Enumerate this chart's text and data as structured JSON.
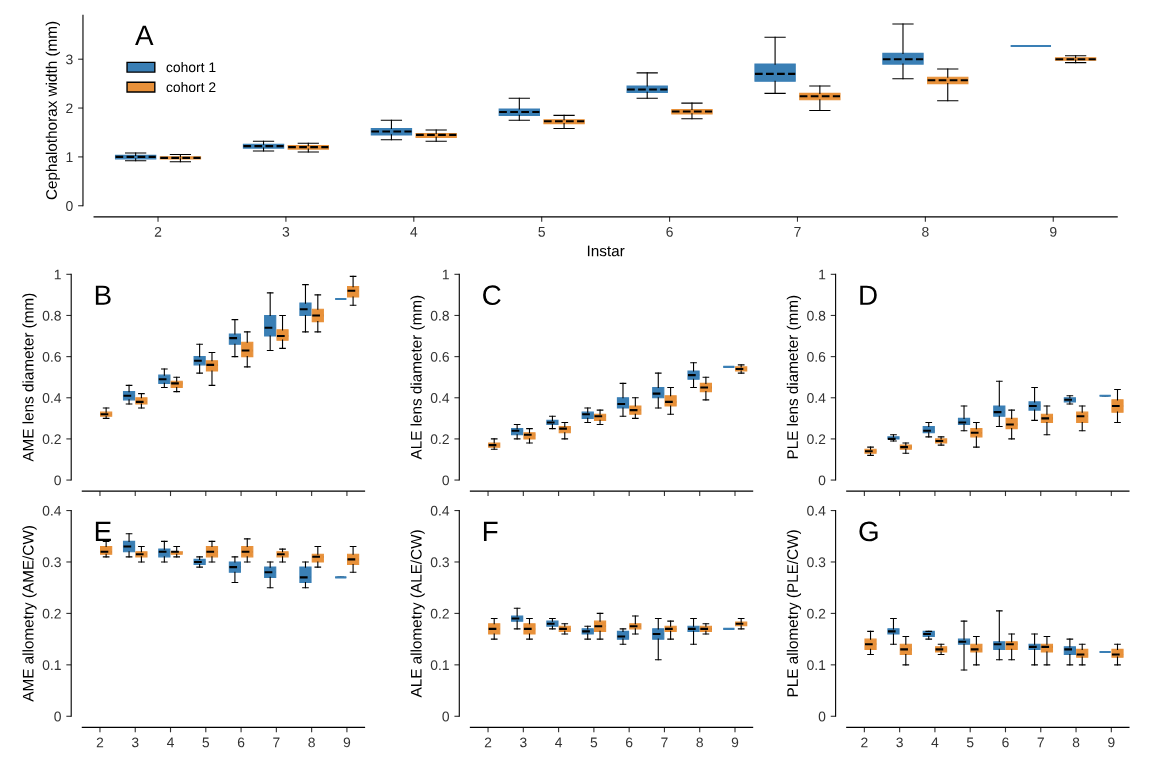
{
  "chart_data": [
    {
      "type": "box",
      "annotations": [
        "A"
      ],
      "xlabel": "Instar",
      "ylabel": "Cephalothorax width (mm)",
      "categories": [
        "2",
        "3",
        "4",
        "5",
        "6",
        "7",
        "8",
        "9"
      ],
      "ylim": [
        0,
        3.9
      ],
      "yticks": [
        0,
        1,
        2,
        3
      ],
      "legend": "top left",
      "series": [
        {
          "name": "cohort 1",
          "color": "#3a7fb5",
          "boxes": [
            {
              "low": 0.92,
              "q1": 0.96,
              "median": 1.0,
              "q3": 1.03,
              "high": 1.08
            },
            {
              "low": 1.12,
              "q1": 1.18,
              "median": 1.22,
              "q3": 1.26,
              "high": 1.32
            },
            {
              "low": 1.35,
              "q1": 1.45,
              "median": 1.52,
              "q3": 1.58,
              "high": 1.75
            },
            {
              "low": 1.75,
              "q1": 1.85,
              "median": 1.92,
              "q3": 1.98,
              "high": 2.2
            },
            {
              "low": 2.2,
              "q1": 2.32,
              "median": 2.38,
              "q3": 2.45,
              "high": 2.72
            },
            {
              "low": 2.3,
              "q1": 2.55,
              "median": 2.7,
              "q3": 2.9,
              "high": 3.45
            },
            {
              "low": 2.6,
              "q1": 2.9,
              "median": 3.0,
              "q3": 3.12,
              "high": 3.72
            },
            {
              "low": 3.27,
              "q1": 3.27,
              "median": 3.27,
              "q3": 3.27,
              "high": 3.27
            }
          ]
        },
        {
          "name": "cohort 2",
          "color": "#e8913a",
          "boxes": [
            {
              "low": 0.9,
              "q1": 0.96,
              "median": 0.98,
              "q3": 1.0,
              "high": 1.05
            },
            {
              "low": 1.1,
              "q1": 1.16,
              "median": 1.2,
              "q3": 1.23,
              "high": 1.28
            },
            {
              "low": 1.32,
              "q1": 1.4,
              "median": 1.45,
              "q3": 1.48,
              "high": 1.55
            },
            {
              "low": 1.58,
              "q1": 1.68,
              "median": 1.73,
              "q3": 1.76,
              "high": 1.85
            },
            {
              "low": 1.78,
              "q1": 1.88,
              "median": 1.93,
              "q3": 1.97,
              "high": 2.1
            },
            {
              "low": 1.95,
              "q1": 2.17,
              "median": 2.24,
              "q3": 2.3,
              "high": 2.45
            },
            {
              "low": 2.15,
              "q1": 2.5,
              "median": 2.57,
              "q3": 2.63,
              "high": 2.8
            },
            {
              "low": 2.93,
              "q1": 2.98,
              "median": 3.0,
              "q3": 3.03,
              "high": 3.07
            }
          ]
        }
      ]
    },
    {
      "type": "box",
      "annotations": [
        "B"
      ],
      "ylabel": "AME lens diameter (mm)",
      "categories": [
        "2",
        "3",
        "4",
        "5",
        "6",
        "7",
        "8",
        "9"
      ],
      "ylim": [
        0,
        1
      ],
      "yticks": [
        0,
        0.2,
        0.4,
        0.6,
        0.8,
        1
      ],
      "tick_labels": "y",
      "series": [
        {
          "color": "#3a7fb5",
          "boxes": [
            null,
            {
              "low": 0.37,
              "q1": 0.39,
              "median": 0.41,
              "q3": 0.43,
              "high": 0.46
            },
            {
              "low": 0.45,
              "q1": 0.47,
              "median": 0.49,
              "q3": 0.51,
              "high": 0.54
            },
            {
              "low": 0.52,
              "q1": 0.56,
              "median": 0.58,
              "q3": 0.6,
              "high": 0.66
            },
            {
              "low": 0.6,
              "q1": 0.66,
              "median": 0.69,
              "q3": 0.71,
              "high": 0.78
            },
            {
              "low": 0.63,
              "q1": 0.7,
              "median": 0.74,
              "q3": 0.8,
              "high": 0.91
            },
            {
              "low": 0.72,
              "q1": 0.8,
              "median": 0.83,
              "q3": 0.86,
              "high": 0.95
            },
            {
              "low": 0.88,
              "q1": 0.88,
              "median": 0.88,
              "q3": 0.88,
              "high": 0.88
            }
          ]
        },
        {
          "color": "#e8913a",
          "boxes": [
            {
              "low": 0.3,
              "q1": 0.31,
              "median": 0.32,
              "q3": 0.33,
              "high": 0.35
            },
            {
              "low": 0.35,
              "q1": 0.37,
              "median": 0.38,
              "q3": 0.4,
              "high": 0.42
            },
            {
              "low": 0.43,
              "q1": 0.45,
              "median": 0.47,
              "q3": 0.48,
              "high": 0.5
            },
            {
              "low": 0.46,
              "q1": 0.53,
              "median": 0.56,
              "q3": 0.58,
              "high": 0.62
            },
            {
              "low": 0.55,
              "q1": 0.6,
              "median": 0.63,
              "q3": 0.67,
              "high": 0.72
            },
            {
              "low": 0.64,
              "q1": 0.68,
              "median": 0.7,
              "q3": 0.73,
              "high": 0.8
            },
            {
              "low": 0.72,
              "q1": 0.77,
              "median": 0.8,
              "q3": 0.83,
              "high": 0.9
            },
            {
              "low": 0.85,
              "q1": 0.89,
              "median": 0.92,
              "q3": 0.94,
              "high": 0.99
            }
          ]
        }
      ]
    },
    {
      "type": "box",
      "annotations": [
        "C"
      ],
      "ylabel": "ALE lens diameter (mm)",
      "categories": [
        "2",
        "3",
        "4",
        "5",
        "6",
        "7",
        "8",
        "9"
      ],
      "ylim": [
        0,
        1
      ],
      "yticks": [
        0,
        0.2,
        0.4,
        0.6,
        0.8,
        1
      ],
      "tick_labels": "y",
      "series": [
        {
          "color": "#3a7fb5",
          "boxes": [
            null,
            {
              "low": 0.2,
              "q1": 0.22,
              "median": 0.24,
              "q3": 0.25,
              "high": 0.27
            },
            {
              "low": 0.25,
              "q1": 0.27,
              "median": 0.28,
              "q3": 0.29,
              "high": 0.31
            },
            {
              "low": 0.28,
              "q1": 0.3,
              "median": 0.32,
              "q3": 0.33,
              "high": 0.35
            },
            {
              "low": 0.31,
              "q1": 0.35,
              "median": 0.37,
              "q3": 0.4,
              "high": 0.47
            },
            {
              "low": 0.35,
              "q1": 0.4,
              "median": 0.42,
              "q3": 0.45,
              "high": 0.52
            },
            {
              "low": 0.45,
              "q1": 0.49,
              "median": 0.51,
              "q3": 0.53,
              "high": 0.57
            },
            {
              "low": 0.55,
              "q1": 0.55,
              "median": 0.55,
              "q3": 0.55,
              "high": 0.55
            }
          ]
        },
        {
          "color": "#e8913a",
          "boxes": [
            {
              "low": 0.15,
              "q1": 0.16,
              "median": 0.17,
              "q3": 0.18,
              "high": 0.2
            },
            {
              "low": 0.18,
              "q1": 0.2,
              "median": 0.22,
              "q3": 0.23,
              "high": 0.25
            },
            {
              "low": 0.2,
              "q1": 0.23,
              "median": 0.25,
              "q3": 0.26,
              "high": 0.28
            },
            {
              "low": 0.27,
              "q1": 0.29,
              "median": 0.31,
              "q3": 0.32,
              "high": 0.34
            },
            {
              "low": 0.3,
              "q1": 0.32,
              "median": 0.34,
              "q3": 0.36,
              "high": 0.4
            },
            {
              "low": 0.32,
              "q1": 0.36,
              "median": 0.38,
              "q3": 0.41,
              "high": 0.45
            },
            {
              "low": 0.39,
              "q1": 0.43,
              "median": 0.45,
              "q3": 0.47,
              "high": 0.5
            },
            {
              "low": 0.52,
              "q1": 0.53,
              "median": 0.54,
              "q3": 0.55,
              "high": 0.56
            }
          ]
        }
      ]
    },
    {
      "type": "box",
      "annotations": [
        "D"
      ],
      "ylabel": "PLE lens diameter (mm)",
      "categories": [
        "2",
        "3",
        "4",
        "5",
        "6",
        "7",
        "8",
        "9"
      ],
      "ylim": [
        0,
        1
      ],
      "yticks": [
        0,
        0.2,
        0.4,
        0.6,
        0.8,
        1
      ],
      "tick_labels": "y",
      "series": [
        {
          "color": "#3a7fb5",
          "boxes": [
            null,
            {
              "low": 0.19,
              "q1": 0.2,
              "median": 0.2,
              "q3": 0.21,
              "high": 0.22
            },
            {
              "low": 0.21,
              "q1": 0.23,
              "median": 0.24,
              "q3": 0.26,
              "high": 0.28
            },
            {
              "low": 0.24,
              "q1": 0.27,
              "median": 0.28,
              "q3": 0.3,
              "high": 0.36
            },
            {
              "low": 0.26,
              "q1": 0.31,
              "median": 0.33,
              "q3": 0.36,
              "high": 0.48
            },
            {
              "low": 0.29,
              "q1": 0.34,
              "median": 0.36,
              "q3": 0.38,
              "high": 0.45
            },
            {
              "low": 0.37,
              "q1": 0.38,
              "median": 0.39,
              "q3": 0.4,
              "high": 0.41
            },
            {
              "low": 0.41,
              "q1": 0.41,
              "median": 0.41,
              "q3": 0.41,
              "high": 0.41
            }
          ]
        },
        {
          "color": "#e8913a",
          "boxes": [
            {
              "low": 0.12,
              "q1": 0.13,
              "median": 0.14,
              "q3": 0.15,
              "high": 0.16
            },
            {
              "low": 0.13,
              "q1": 0.15,
              "median": 0.16,
              "q3": 0.17,
              "high": 0.18
            },
            {
              "low": 0.17,
              "q1": 0.18,
              "median": 0.19,
              "q3": 0.2,
              "high": 0.21
            },
            {
              "low": 0.16,
              "q1": 0.21,
              "median": 0.23,
              "q3": 0.25,
              "high": 0.28
            },
            {
              "low": 0.2,
              "q1": 0.25,
              "median": 0.27,
              "q3": 0.3,
              "high": 0.34
            },
            {
              "low": 0.22,
              "q1": 0.28,
              "median": 0.3,
              "q3": 0.32,
              "high": 0.36
            },
            {
              "low": 0.24,
              "q1": 0.28,
              "median": 0.31,
              "q3": 0.33,
              "high": 0.36
            },
            {
              "low": 0.28,
              "q1": 0.33,
              "median": 0.36,
              "q3": 0.39,
              "high": 0.44
            }
          ]
        }
      ]
    },
    {
      "type": "box",
      "annotations": [
        "E"
      ],
      "ylabel": "AME allometry (AME/CW)",
      "categories": [
        "2",
        "3",
        "4",
        "5",
        "6",
        "7",
        "8",
        "9"
      ],
      "ylim": [
        0,
        0.4
      ],
      "yticks": [
        0,
        0.1,
        0.2,
        0.3,
        0.4
      ],
      "series": [
        {
          "color": "#3a7fb5",
          "boxes": [
            null,
            {
              "low": 0.31,
              "q1": 0.32,
              "median": 0.33,
              "q3": 0.34,
              "high": 0.355
            },
            {
              "low": 0.3,
              "q1": 0.31,
              "median": 0.32,
              "q3": 0.325,
              "high": 0.34
            },
            {
              "low": 0.29,
              "q1": 0.295,
              "median": 0.3,
              "q3": 0.305,
              "high": 0.31
            },
            {
              "low": 0.26,
              "q1": 0.28,
              "median": 0.29,
              "q3": 0.3,
              "high": 0.31
            },
            {
              "low": 0.25,
              "q1": 0.27,
              "median": 0.28,
              "q3": 0.29,
              "high": 0.3
            },
            {
              "low": 0.25,
              "q1": 0.26,
              "median": 0.27,
              "q3": 0.29,
              "high": 0.3
            },
            {
              "low": 0.27,
              "q1": 0.27,
              "median": 0.27,
              "q3": 0.27,
              "high": 0.27
            }
          ]
        },
        {
          "color": "#e8913a",
          "boxes": [
            {
              "low": 0.31,
              "q1": 0.315,
              "median": 0.32,
              "q3": 0.33,
              "high": 0.34
            },
            {
              "low": 0.3,
              "q1": 0.31,
              "median": 0.315,
              "q3": 0.32,
              "high": 0.33
            },
            {
              "low": 0.31,
              "q1": 0.315,
              "median": 0.32,
              "q3": 0.32,
              "high": 0.33
            },
            {
              "low": 0.3,
              "q1": 0.31,
              "median": 0.32,
              "q3": 0.33,
              "high": 0.34
            },
            {
              "low": 0.3,
              "q1": 0.31,
              "median": 0.32,
              "q3": 0.33,
              "high": 0.345
            },
            {
              "low": 0.3,
              "q1": 0.31,
              "median": 0.315,
              "q3": 0.32,
              "high": 0.325
            },
            {
              "low": 0.29,
              "q1": 0.3,
              "median": 0.31,
              "q3": 0.315,
              "high": 0.33
            },
            {
              "low": 0.28,
              "q1": 0.295,
              "median": 0.305,
              "q3": 0.315,
              "high": 0.33
            }
          ]
        }
      ]
    },
    {
      "type": "box",
      "annotations": [
        "F"
      ],
      "ylabel": "ALE allometry (ALE/CW)",
      "categories": [
        "2",
        "3",
        "4",
        "5",
        "6",
        "7",
        "8",
        "9"
      ],
      "ylim": [
        0,
        0.4
      ],
      "yticks": [
        0,
        0.1,
        0.2,
        0.3,
        0.4
      ],
      "series": [
        {
          "color": "#3a7fb5",
          "boxes": [
            null,
            {
              "low": 0.17,
              "q1": 0.185,
              "median": 0.19,
              "q3": 0.195,
              "high": 0.21
            },
            {
              "low": 0.17,
              "q1": 0.175,
              "median": 0.18,
              "q3": 0.185,
              "high": 0.19
            },
            {
              "low": 0.15,
              "q1": 0.16,
              "median": 0.165,
              "q3": 0.17,
              "high": 0.175
            },
            {
              "low": 0.14,
              "q1": 0.15,
              "median": 0.155,
              "q3": 0.165,
              "high": 0.17
            },
            {
              "low": 0.11,
              "q1": 0.15,
              "median": 0.16,
              "q3": 0.17,
              "high": 0.19
            },
            {
              "low": 0.14,
              "q1": 0.165,
              "median": 0.17,
              "q3": 0.175,
              "high": 0.19
            },
            {
              "low": 0.17,
              "q1": 0.17,
              "median": 0.17,
              "q3": 0.17,
              "high": 0.17
            }
          ]
        },
        {
          "color": "#e8913a",
          "boxes": [
            {
              "low": 0.15,
              "q1": 0.16,
              "median": 0.17,
              "q3": 0.18,
              "high": 0.19
            },
            {
              "low": 0.15,
              "q1": 0.16,
              "median": 0.17,
              "q3": 0.18,
              "high": 0.19
            },
            {
              "low": 0.16,
              "q1": 0.165,
              "median": 0.17,
              "q3": 0.175,
              "high": 0.18
            },
            {
              "low": 0.15,
              "q1": 0.165,
              "median": 0.175,
              "q3": 0.185,
              "high": 0.2
            },
            {
              "low": 0.16,
              "q1": 0.17,
              "median": 0.175,
              "q3": 0.18,
              "high": 0.195
            },
            {
              "low": 0.15,
              "q1": 0.165,
              "median": 0.17,
              "q3": 0.175,
              "high": 0.185
            },
            {
              "low": 0.16,
              "q1": 0.165,
              "median": 0.17,
              "q3": 0.175,
              "high": 0.18
            },
            {
              "low": 0.17,
              "q1": 0.176,
              "median": 0.18,
              "q3": 0.183,
              "high": 0.19
            }
          ]
        }
      ]
    },
    {
      "type": "box",
      "annotations": [
        "G"
      ],
      "ylabel": "PLE allometry (PLE/CW)",
      "categories": [
        "2",
        "3",
        "4",
        "5",
        "6",
        "7",
        "8",
        "9"
      ],
      "ylim": [
        0,
        0.4
      ],
      "yticks": [
        0,
        0.1,
        0.2,
        0.3,
        0.4
      ],
      "series": [
        {
          "color": "#3a7fb5",
          "boxes": [
            null,
            {
              "low": 0.14,
              "q1": 0.16,
              "median": 0.165,
              "q3": 0.17,
              "high": 0.19
            },
            {
              "low": 0.15,
              "q1": 0.155,
              "median": 0.16,
              "q3": 0.165,
              "high": 0.165
            },
            {
              "low": 0.09,
              "q1": 0.14,
              "median": 0.145,
              "q3": 0.15,
              "high": 0.185
            },
            {
              "low": 0.11,
              "q1": 0.13,
              "median": 0.14,
              "q3": 0.145,
              "high": 0.205
            },
            {
              "low": 0.1,
              "q1": 0.13,
              "median": 0.135,
              "q3": 0.14,
              "high": 0.16
            },
            {
              "low": 0.1,
              "q1": 0.12,
              "median": 0.13,
              "q3": 0.135,
              "high": 0.15
            },
            {
              "low": 0.125,
              "q1": 0.125,
              "median": 0.125,
              "q3": 0.125,
              "high": 0.125
            }
          ]
        },
        {
          "color": "#e8913a",
          "boxes": [
            {
              "low": 0.12,
              "q1": 0.13,
              "median": 0.14,
              "q3": 0.15,
              "high": 0.165
            },
            {
              "low": 0.1,
              "q1": 0.12,
              "median": 0.13,
              "q3": 0.14,
              "high": 0.155
            },
            {
              "low": 0.12,
              "q1": 0.125,
              "median": 0.13,
              "q3": 0.135,
              "high": 0.14
            },
            {
              "low": 0.1,
              "q1": 0.125,
              "median": 0.13,
              "q3": 0.14,
              "high": 0.155
            },
            {
              "low": 0.11,
              "q1": 0.13,
              "median": 0.14,
              "q3": 0.145,
              "high": 0.16
            },
            {
              "low": 0.1,
              "q1": 0.125,
              "median": 0.135,
              "q3": 0.14,
              "high": 0.155
            },
            {
              "low": 0.1,
              "q1": 0.115,
              "median": 0.12,
              "q3": 0.13,
              "high": 0.14
            },
            {
              "low": 0.1,
              "q1": 0.115,
              "median": 0.12,
              "q3": 0.13,
              "high": 0.14
            }
          ]
        }
      ]
    }
  ]
}
